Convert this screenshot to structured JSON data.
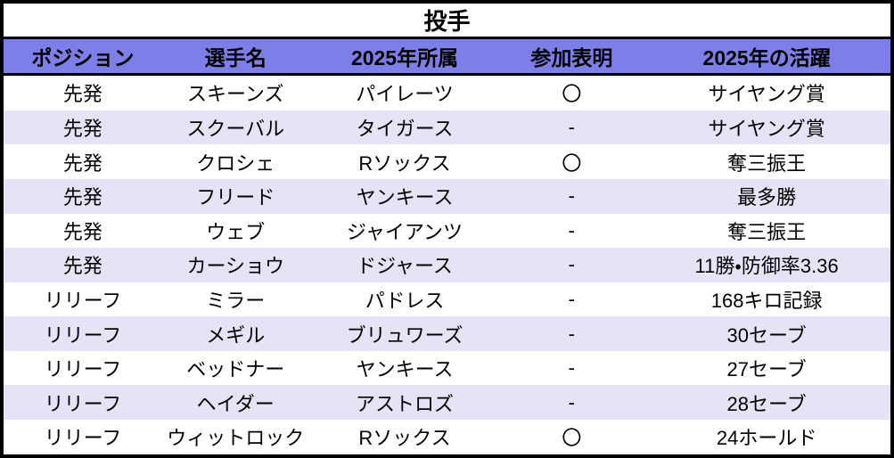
{
  "table": {
    "title": "投手",
    "columns": [
      {
        "key": "position",
        "label": "ポジション"
      },
      {
        "key": "player",
        "label": "選手名"
      },
      {
        "key": "team",
        "label": "2025年所属"
      },
      {
        "key": "entry",
        "label": "参加表明"
      },
      {
        "key": "result",
        "label": "2025年の活躍"
      }
    ],
    "rows": [
      [
        "先発",
        "スキーンズ",
        "パイレーツ",
        "〇",
        "サイヤング賞"
      ],
      [
        "先発",
        "スクーバル",
        "タイガース",
        "-",
        "サイヤング賞"
      ],
      [
        "先発",
        "クロシェ",
        "Rソックス",
        "〇",
        "奪三振王"
      ],
      [
        "先発",
        "フリード",
        "ヤンキース",
        "-",
        "最多勝"
      ],
      [
        "先発",
        "ウェブ",
        "ジャイアンツ",
        "-",
        "奪三振王"
      ],
      [
        "先発",
        "カーショウ",
        "ドジャース",
        "-",
        "11勝・防御率3.36"
      ],
      [
        "リリーフ",
        "ミラー",
        "パドレス",
        "-",
        "168キロ記録"
      ],
      [
        "リリーフ",
        "メギル",
        "ブリュワーズ",
        "-",
        "30セーブ"
      ],
      [
        "リリーフ",
        "ベッドナー",
        "ヤンキース",
        "-",
        "27セーブ"
      ],
      [
        "リリーフ",
        "ヘイダー",
        "アストロズ",
        "-",
        "28セーブ"
      ],
      [
        "リリーフ",
        "ウィットロック",
        "Rソックス",
        "〇",
        "24ホールド"
      ]
    ],
    "colors": {
      "header_bg": "#7e7ee8",
      "stripe_bg": "#e4e4f6",
      "row_bg": "#ffffff",
      "border": "#000000",
      "text": "#000000"
    }
  }
}
